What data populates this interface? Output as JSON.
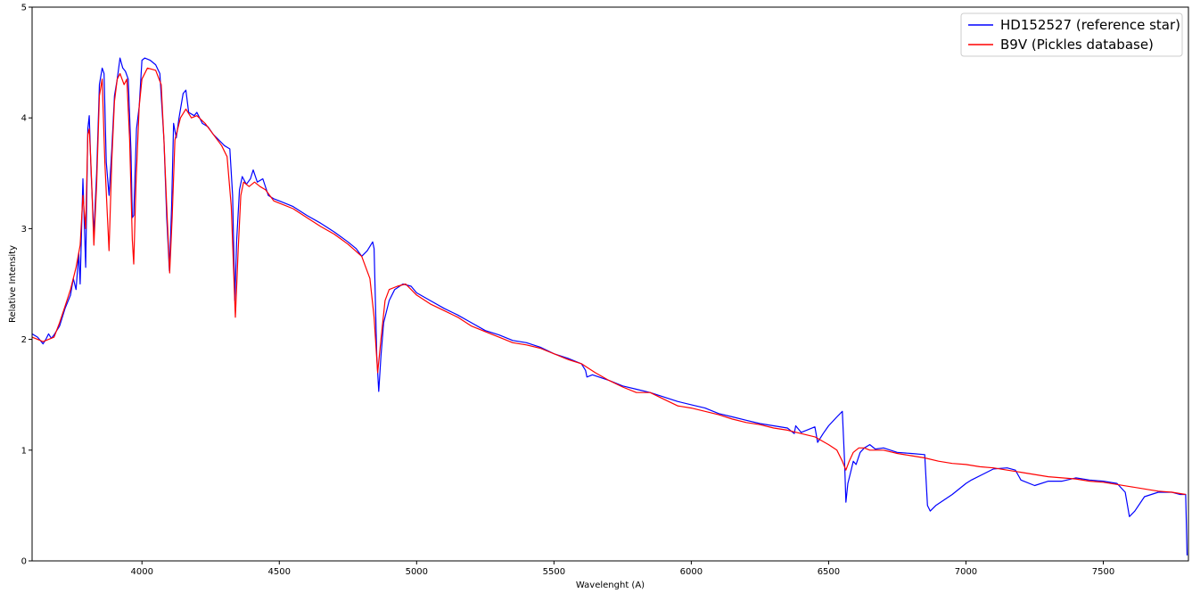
{
  "chart_data": {
    "type": "line",
    "title": "",
    "xlabel": "Wavelenght (A)",
    "ylabel": "Relative Intensity",
    "xlim": [
      3600,
      7810
    ],
    "ylim": [
      0,
      5
    ],
    "xticks": [
      4000,
      4500,
      5000,
      5500,
      6000,
      6500,
      7000,
      7500
    ],
    "xtick_labels": [
      "4000",
      "4500",
      "5000",
      "5500",
      "6000",
      "6500",
      "7000",
      "7500"
    ],
    "yticks": [
      0,
      1,
      2,
      3,
      4,
      5
    ],
    "ytick_labels": [
      "0",
      "1",
      "2",
      "3",
      "4",
      "5"
    ],
    "grid": false,
    "legend_position": "top-right",
    "series": [
      {
        "name": "HD152527 (reference star)",
        "color": "#0000ff",
        "points": [
          [
            3600,
            2.05
          ],
          [
            3620,
            2.02
          ],
          [
            3640,
            1.96
          ],
          [
            3650,
            2.0
          ],
          [
            3660,
            2.05
          ],
          [
            3670,
            2.01
          ],
          [
            3680,
            2.04
          ],
          [
            3700,
            2.12
          ],
          [
            3720,
            2.28
          ],
          [
            3740,
            2.4
          ],
          [
            3750,
            2.55
          ],
          [
            3760,
            2.45
          ],
          [
            3770,
            2.78
          ],
          [
            3775,
            2.5
          ],
          [
            3785,
            3.45
          ],
          [
            3795,
            2.65
          ],
          [
            3803,
            3.9
          ],
          [
            3808,
            4.02
          ],
          [
            3815,
            3.5
          ],
          [
            3825,
            2.95
          ],
          [
            3835,
            3.5
          ],
          [
            3845,
            4.3
          ],
          [
            3855,
            4.45
          ],
          [
            3862,
            4.4
          ],
          [
            3870,
            3.6
          ],
          [
            3880,
            3.3
          ],
          [
            3890,
            3.7
          ],
          [
            3900,
            4.2
          ],
          [
            3910,
            4.35
          ],
          [
            3920,
            4.54
          ],
          [
            3930,
            4.45
          ],
          [
            3940,
            4.42
          ],
          [
            3950,
            4.35
          ],
          [
            3960,
            3.7
          ],
          [
            3965,
            3.1
          ],
          [
            3970,
            3.12
          ],
          [
            3980,
            3.9
          ],
          [
            3990,
            4.1
          ],
          [
            4000,
            4.52
          ],
          [
            4010,
            4.54
          ],
          [
            4030,
            4.52
          ],
          [
            4050,
            4.48
          ],
          [
            4065,
            4.4
          ],
          [
            4080,
            3.8
          ],
          [
            4090,
            3.1
          ],
          [
            4100,
            2.62
          ],
          [
            4108,
            3.2
          ],
          [
            4115,
            3.95
          ],
          [
            4125,
            3.82
          ],
          [
            4135,
            4.0
          ],
          [
            4150,
            4.22
          ],
          [
            4160,
            4.25
          ],
          [
            4170,
            4.05
          ],
          [
            4190,
            4.02
          ],
          [
            4200,
            4.05
          ],
          [
            4220,
            3.95
          ],
          [
            4240,
            3.92
          ],
          [
            4260,
            3.85
          ],
          [
            4280,
            3.8
          ],
          [
            4300,
            3.75
          ],
          [
            4320,
            3.72
          ],
          [
            4330,
            3.3
          ],
          [
            4338,
            2.35
          ],
          [
            4345,
            2.9
          ],
          [
            4355,
            3.35
          ],
          [
            4365,
            3.47
          ],
          [
            4380,
            3.4
          ],
          [
            4395,
            3.45
          ],
          [
            4405,
            3.53
          ],
          [
            4420,
            3.42
          ],
          [
            4440,
            3.45
          ],
          [
            4460,
            3.3
          ],
          [
            4480,
            3.27
          ],
          [
            4500,
            3.25
          ],
          [
            4550,
            3.2
          ],
          [
            4600,
            3.12
          ],
          [
            4650,
            3.05
          ],
          [
            4700,
            2.97
          ],
          [
            4750,
            2.88
          ],
          [
            4780,
            2.82
          ],
          [
            4800,
            2.75
          ],
          [
            4820,
            2.8
          ],
          [
            4840,
            2.88
          ],
          [
            4845,
            2.82
          ],
          [
            4855,
            1.85
          ],
          [
            4862,
            1.53
          ],
          [
            4870,
            1.85
          ],
          [
            4880,
            2.15
          ],
          [
            4900,
            2.35
          ],
          [
            4920,
            2.45
          ],
          [
            4950,
            2.5
          ],
          [
            4980,
            2.48
          ],
          [
            5000,
            2.42
          ],
          [
            5050,
            2.35
          ],
          [
            5100,
            2.28
          ],
          [
            5150,
            2.22
          ],
          [
            5200,
            2.15
          ],
          [
            5250,
            2.08
          ],
          [
            5300,
            2.04
          ],
          [
            5350,
            1.99
          ],
          [
            5400,
            1.97
          ],
          [
            5450,
            1.93
          ],
          [
            5500,
            1.87
          ],
          [
            5550,
            1.83
          ],
          [
            5600,
            1.78
          ],
          [
            5615,
            1.72
          ],
          [
            5620,
            1.66
          ],
          [
            5640,
            1.68
          ],
          [
            5700,
            1.63
          ],
          [
            5750,
            1.58
          ],
          [
            5800,
            1.55
          ],
          [
            5850,
            1.52
          ],
          [
            5900,
            1.48
          ],
          [
            5950,
            1.44
          ],
          [
            6000,
            1.41
          ],
          [
            6050,
            1.38
          ],
          [
            6100,
            1.33
          ],
          [
            6150,
            1.3
          ],
          [
            6200,
            1.27
          ],
          [
            6250,
            1.24
          ],
          [
            6300,
            1.22
          ],
          [
            6350,
            1.2
          ],
          [
            6375,
            1.15
          ],
          [
            6380,
            1.22
          ],
          [
            6400,
            1.16
          ],
          [
            6430,
            1.19
          ],
          [
            6450,
            1.21
          ],
          [
            6460,
            1.07
          ],
          [
            6480,
            1.15
          ],
          [
            6500,
            1.22
          ],
          [
            6530,
            1.3
          ],
          [
            6550,
            1.35
          ],
          [
            6558,
            0.9
          ],
          [
            6563,
            0.53
          ],
          [
            6570,
            0.7
          ],
          [
            6580,
            0.8
          ],
          [
            6590,
            0.9
          ],
          [
            6600,
            0.87
          ],
          [
            6615,
            0.98
          ],
          [
            6630,
            1.02
          ],
          [
            6650,
            1.05
          ],
          [
            6670,
            1.01
          ],
          [
            6700,
            1.02
          ],
          [
            6750,
            0.98
          ],
          [
            6800,
            0.97
          ],
          [
            6850,
            0.96
          ],
          [
            6860,
            0.5
          ],
          [
            6870,
            0.45
          ],
          [
            6890,
            0.5
          ],
          [
            6950,
            0.6
          ],
          [
            7000,
            0.7
          ],
          [
            7020,
            0.73
          ],
          [
            7060,
            0.78
          ],
          [
            7100,
            0.83
          ],
          [
            7150,
            0.84
          ],
          [
            7180,
            0.82
          ],
          [
            7200,
            0.73
          ],
          [
            7250,
            0.68
          ],
          [
            7300,
            0.72
          ],
          [
            7350,
            0.72
          ],
          [
            7400,
            0.75
          ],
          [
            7450,
            0.73
          ],
          [
            7500,
            0.72
          ],
          [
            7550,
            0.7
          ],
          [
            7580,
            0.62
          ],
          [
            7595,
            0.4
          ],
          [
            7615,
            0.45
          ],
          [
            7650,
            0.58
          ],
          [
            7700,
            0.62
          ],
          [
            7750,
            0.62
          ],
          [
            7780,
            0.6
          ],
          [
            7800,
            0.6
          ],
          [
            7805,
            0.05
          ]
        ]
      },
      {
        "name": "B9V (Pickles database)",
        "color": "#ff0000",
        "points": [
          [
            3600,
            2.02
          ],
          [
            3620,
            2.0
          ],
          [
            3640,
            1.98
          ],
          [
            3660,
            2.0
          ],
          [
            3680,
            2.02
          ],
          [
            3700,
            2.15
          ],
          [
            3720,
            2.3
          ],
          [
            3740,
            2.45
          ],
          [
            3760,
            2.65
          ],
          [
            3775,
            2.85
          ],
          [
            3785,
            3.3
          ],
          [
            3795,
            3.0
          ],
          [
            3803,
            3.85
          ],
          [
            3808,
            3.9
          ],
          [
            3815,
            3.55
          ],
          [
            3825,
            2.85
          ],
          [
            3835,
            3.4
          ],
          [
            3845,
            4.2
          ],
          [
            3855,
            4.35
          ],
          [
            3865,
            3.6
          ],
          [
            3880,
            2.8
          ],
          [
            3890,
            3.6
          ],
          [
            3900,
            4.15
          ],
          [
            3910,
            4.35
          ],
          [
            3920,
            4.4
          ],
          [
            3935,
            4.3
          ],
          [
            3945,
            4.35
          ],
          [
            3955,
            3.8
          ],
          [
            3965,
            2.9
          ],
          [
            3970,
            2.68
          ],
          [
            3978,
            3.4
          ],
          [
            3990,
            4.1
          ],
          [
            4000,
            4.35
          ],
          [
            4020,
            4.45
          ],
          [
            4050,
            4.43
          ],
          [
            4070,
            4.3
          ],
          [
            4080,
            3.8
          ],
          [
            4090,
            3.2
          ],
          [
            4101,
            2.6
          ],
          [
            4110,
            3.1
          ],
          [
            4120,
            3.8
          ],
          [
            4140,
            4.0
          ],
          [
            4160,
            4.08
          ],
          [
            4180,
            4.0
          ],
          [
            4200,
            4.02
          ],
          [
            4230,
            3.95
          ],
          [
            4260,
            3.85
          ],
          [
            4290,
            3.75
          ],
          [
            4310,
            3.65
          ],
          [
            4325,
            3.2
          ],
          [
            4340,
            2.2
          ],
          [
            4350,
            2.8
          ],
          [
            4360,
            3.3
          ],
          [
            4370,
            3.42
          ],
          [
            4390,
            3.38
          ],
          [
            4410,
            3.42
          ],
          [
            4430,
            3.38
          ],
          [
            4450,
            3.35
          ],
          [
            4480,
            3.25
          ],
          [
            4500,
            3.23
          ],
          [
            4550,
            3.18
          ],
          [
            4600,
            3.1
          ],
          [
            4650,
            3.02
          ],
          [
            4700,
            2.95
          ],
          [
            4750,
            2.86
          ],
          [
            4800,
            2.75
          ],
          [
            4830,
            2.55
          ],
          [
            4845,
            2.2
          ],
          [
            4858,
            1.7
          ],
          [
            4870,
            2.0
          ],
          [
            4885,
            2.35
          ],
          [
            4900,
            2.45
          ],
          [
            4930,
            2.48
          ],
          [
            4960,
            2.5
          ],
          [
            5000,
            2.4
          ],
          [
            5050,
            2.32
          ],
          [
            5100,
            2.26
          ],
          [
            5150,
            2.2
          ],
          [
            5200,
            2.12
          ],
          [
            5250,
            2.07
          ],
          [
            5300,
            2.02
          ],
          [
            5350,
            1.97
          ],
          [
            5400,
            1.95
          ],
          [
            5450,
            1.92
          ],
          [
            5500,
            1.87
          ],
          [
            5550,
            1.82
          ],
          [
            5600,
            1.78
          ],
          [
            5650,
            1.7
          ],
          [
            5700,
            1.63
          ],
          [
            5750,
            1.57
          ],
          [
            5800,
            1.52
          ],
          [
            5850,
            1.52
          ],
          [
            5900,
            1.46
          ],
          [
            5950,
            1.4
          ],
          [
            6000,
            1.38
          ],
          [
            6050,
            1.35
          ],
          [
            6100,
            1.32
          ],
          [
            6150,
            1.28
          ],
          [
            6200,
            1.25
          ],
          [
            6250,
            1.23
          ],
          [
            6300,
            1.2
          ],
          [
            6350,
            1.18
          ],
          [
            6400,
            1.15
          ],
          [
            6450,
            1.12
          ],
          [
            6500,
            1.05
          ],
          [
            6530,
            1.0
          ],
          [
            6550,
            0.9
          ],
          [
            6563,
            0.82
          ],
          [
            6575,
            0.9
          ],
          [
            6590,
            0.98
          ],
          [
            6610,
            1.02
          ],
          [
            6630,
            1.02
          ],
          [
            6650,
            1.0
          ],
          [
            6700,
            1.0
          ],
          [
            6750,
            0.97
          ],
          [
            6800,
            0.95
          ],
          [
            6850,
            0.93
          ],
          [
            6900,
            0.9
          ],
          [
            6950,
            0.88
          ],
          [
            7000,
            0.87
          ],
          [
            7050,
            0.85
          ],
          [
            7100,
            0.84
          ],
          [
            7150,
            0.82
          ],
          [
            7200,
            0.8
          ],
          [
            7250,
            0.78
          ],
          [
            7300,
            0.76
          ],
          [
            7350,
            0.75
          ],
          [
            7400,
            0.74
          ],
          [
            7450,
            0.72
          ],
          [
            7500,
            0.71
          ],
          [
            7550,
            0.69
          ],
          [
            7600,
            0.67
          ],
          [
            7650,
            0.65
          ],
          [
            7700,
            0.63
          ],
          [
            7750,
            0.62
          ],
          [
            7800,
            0.6
          ]
        ]
      }
    ]
  }
}
